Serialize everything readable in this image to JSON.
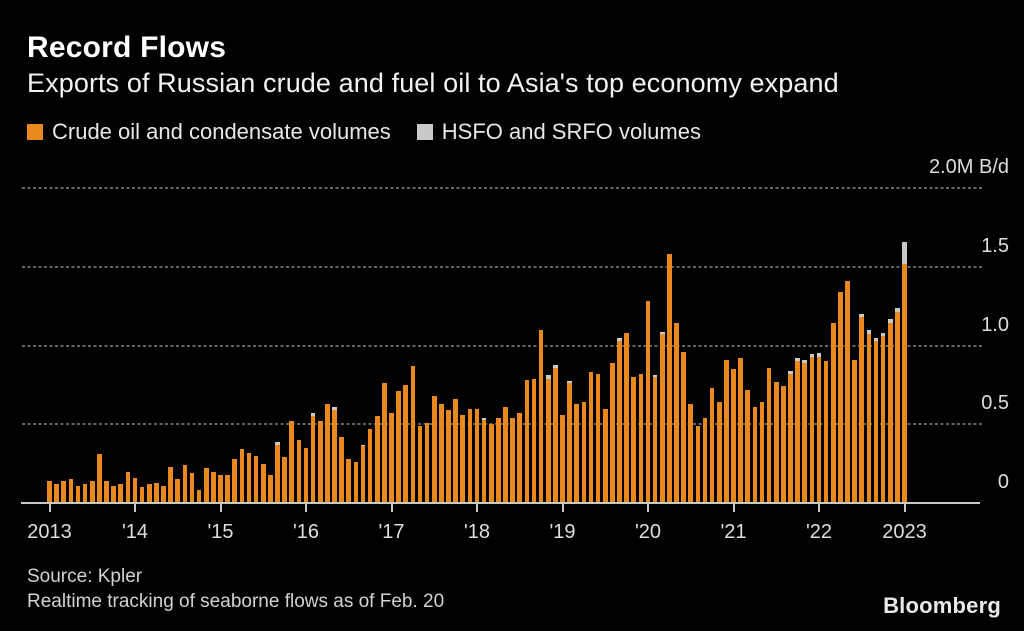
{
  "header": {
    "title": "Record Flows",
    "subtitle": "Exports of Russian crude and fuel oil to Asia's top economy expand"
  },
  "legend": [
    {
      "label": "Crude oil and condensate volumes",
      "color": "#e8891d"
    },
    {
      "label": "HSFO and SRFO volumes",
      "color": "#c9c9c9"
    }
  ],
  "footer": {
    "source": "Source: Kpler",
    "note": "Realtime tracking of seaborne flows as of Feb. 20",
    "brand": "Bloomberg"
  },
  "chart_data": {
    "type": "bar",
    "stacked": true,
    "interval": "monthly",
    "x_start": "2013-01",
    "x_end": "2023-01",
    "ylim": [
      0,
      2.0
    ],
    "y_unit": "M B/d",
    "grid": "dashed-horizontal",
    "legend_position": "top-left",
    "y_ticks": [
      {
        "label": "2.0M B/d",
        "value": 2.0
      },
      {
        "label": "1.5",
        "value": 1.5
      },
      {
        "label": "1.0",
        "value": 1.0
      },
      {
        "label": "0.5",
        "value": 0.5
      },
      {
        "label": "0",
        "value": 0
      }
    ],
    "x_ticks": [
      "2013",
      "'14",
      "'15",
      "'16",
      "'17",
      "'18",
      "'19",
      "'20",
      "'21",
      "'22",
      "2023"
    ],
    "series": [
      {
        "name": "Crude oil and condensate volumes",
        "color": "#e8891d",
        "values": [
          0.14,
          0.12,
          0.14,
          0.15,
          0.11,
          0.12,
          0.14,
          0.31,
          0.14,
          0.11,
          0.12,
          0.2,
          0.16,
          0.1,
          0.12,
          0.13,
          0.11,
          0.23,
          0.15,
          0.24,
          0.19,
          0.08,
          0.22,
          0.2,
          0.18,
          0.18,
          0.28,
          0.34,
          0.32,
          0.3,
          0.25,
          0.18,
          0.37,
          0.29,
          0.52,
          0.4,
          0.35,
          0.55,
          0.52,
          0.63,
          0.59,
          0.42,
          0.28,
          0.26,
          0.36,
          0.47,
          0.55,
          0.76,
          0.57,
          0.71,
          0.75,
          0.87,
          0.49,
          0.51,
          0.68,
          0.63,
          0.59,
          0.66,
          0.56,
          0.6,
          0.6,
          0.53,
          0.5,
          0.54,
          0.61,
          0.54,
          0.57,
          0.78,
          0.79,
          1.1,
          0.79,
          0.86,
          0.56,
          0.76,
          0.63,
          0.64,
          0.83,
          0.82,
          0.6,
          0.89,
          1.03,
          1.08,
          0.8,
          0.82,
          1.28,
          0.8,
          1.07,
          1.58,
          1.14,
          0.96,
          0.63,
          0.49,
          0.54,
          0.73,
          0.64,
          0.91,
          0.85,
          0.92,
          0.72,
          0.61,
          0.64,
          0.86,
          0.77,
          0.74,
          0.82,
          0.9,
          0.89,
          0.93,
          0.93,
          0.9,
          1.14,
          1.34,
          1.41,
          0.91,
          1.18,
          1.07,
          1.03,
          1.06,
          1.14,
          1.21,
          1.52
        ]
      },
      {
        "name": "HSFO and SRFO volumes",
        "color": "#c9c9c9",
        "values": [
          0,
          0,
          0,
          0,
          0,
          0,
          0,
          0,
          0,
          0,
          0,
          0,
          0,
          0,
          0,
          0,
          0,
          0,
          0,
          0,
          0,
          0,
          0,
          0,
          0,
          0,
          0,
          0,
          0,
          0,
          0,
          0,
          0.015,
          0,
          0,
          0,
          0,
          0.02,
          0,
          0,
          0.02,
          0,
          0,
          0,
          0.01,
          0,
          0,
          0,
          0,
          0,
          0,
          0,
          0,
          0,
          0,
          0,
          0,
          0,
          0,
          0,
          0,
          0.01,
          0,
          0,
          0,
          0,
          0,
          0,
          0,
          0,
          0.02,
          0.015,
          0,
          0.015,
          0,
          0,
          0,
          0,
          0,
          0,
          0.02,
          0,
          0,
          0,
          0,
          0.015,
          0.015,
          0,
          0,
          0,
          0,
          0,
          0,
          0,
          0,
          0,
          0,
          0,
          0,
          0,
          0,
          0,
          0,
          0,
          0.02,
          0.02,
          0.02,
          0.015,
          0.02,
          0,
          0,
          0,
          0,
          0,
          0.02,
          0.03,
          0.02,
          0.02,
          0.03,
          0.03,
          0.14
        ]
      }
    ]
  }
}
